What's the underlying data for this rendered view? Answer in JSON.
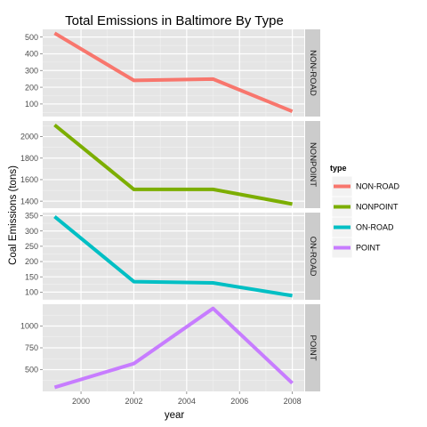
{
  "chart_data": {
    "type": "line",
    "title": "Total Emissions in Baltimore By Type",
    "xlabel": "year",
    "ylabel": "Coal Emissions (tons)",
    "x": [
      1999,
      2002,
      2005,
      2008
    ],
    "xlim": [
      1998.55,
      2008.45
    ],
    "xticks": [
      2000,
      2002,
      2004,
      2006,
      2008
    ],
    "grid": true,
    "legend": {
      "title": "type",
      "position": "right"
    },
    "panels": [
      {
        "name": "NON-ROAD",
        "color": "#F8766D",
        "values": [
          522.9,
          240.8,
          248.9,
          55.8
        ],
        "ylim": [
          25,
          546
        ],
        "yticks": [
          100,
          200,
          300,
          400,
          500
        ]
      },
      {
        "name": "NONPOINT",
        "color": "#7CAE00",
        "values": [
          2107.6,
          1509.5,
          1509.5,
          1373.2
        ],
        "ylim": [
          1335,
          2145
        ],
        "yticks": [
          1400,
          1600,
          1800,
          2000
        ]
      },
      {
        "name": "ON-ROAD",
        "color": "#00BFC4",
        "values": [
          346.8,
          134.3,
          130.4,
          88.3
        ],
        "ylim": [
          75,
          360
        ],
        "yticks": [
          100,
          150,
          200,
          250,
          300,
          350
        ]
      },
      {
        "name": "POINT",
        "color": "#C77CFF",
        "values": [
          296.8,
          569.3,
          1202.5,
          344.98
        ],
        "ylim": [
          250,
          1250
        ],
        "yticks": [
          500,
          750,
          1000
        ]
      }
    ]
  }
}
